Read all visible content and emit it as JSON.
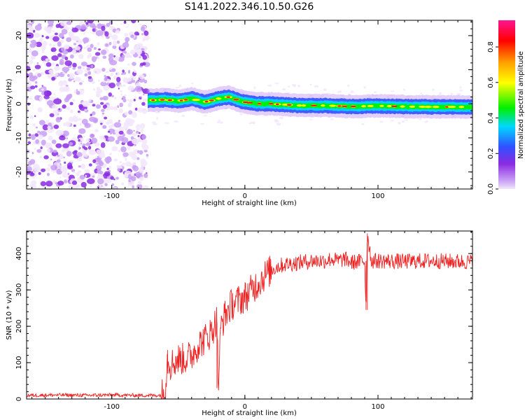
{
  "figure": {
    "title": "S141.2022.346.10.50.G26"
  },
  "chart_data": [
    {
      "type": "heatmap",
      "title": "S141.2022.346.10.50.G26",
      "xlabel": "Height of straight line (km)",
      "ylabel": "Frequency (Hz)",
      "xlim": [
        -164,
        171
      ],
      "ylim": [
        -25,
        24.5
      ],
      "x_ticks": [
        -100,
        0,
        100
      ],
      "y_ticks": [
        -20,
        -10,
        0,
        10,
        20
      ],
      "noise_region_x": [
        -164,
        -73
      ],
      "signal_start_x": -73,
      "signal_track": {
        "x": [
          -73,
          -60,
          -50,
          -40,
          -30,
          -20,
          -12,
          -5,
          0,
          10,
          20,
          40,
          60,
          80,
          100,
          120,
          140,
          160,
          171
        ],
        "frequency_hz": [
          1.0,
          1.2,
          0.8,
          1.5,
          0.5,
          1.5,
          2.0,
          1.0,
          0.5,
          0.0,
          0.0,
          -0.5,
          -0.5,
          -0.8,
          -0.6,
          -0.8,
          -0.9,
          -0.9,
          -1.0
        ]
      },
      "colorbar": {
        "label": "Normalized spectral amplitude",
        "range": [
          0,
          0.95
        ],
        "ticks": [
          0.0,
          0.2,
          0.4,
          0.6,
          0.8
        ],
        "colormap": "rainbow",
        "colors": [
          "#f2e6fc",
          "#c8a0f5",
          "#8a2be2",
          "#3050ff",
          "#00d8ff",
          "#00f000",
          "#ffff00",
          "#ffa000",
          "#ff0000",
          "#ff1493"
        ]
      }
    },
    {
      "type": "line",
      "xlabel": "Height of straight line (km)",
      "ylabel": "SNR (10 * v/v)",
      "xlim": [
        -164,
        171
      ],
      "ylim": [
        0,
        462
      ],
      "x_ticks": [
        -100,
        0,
        100
      ],
      "y_ticks": [
        0,
        100,
        200,
        300,
        400
      ],
      "color": "#ee2222",
      "series": [
        {
          "x": [
            -164,
            -140,
            -120,
            -100,
            -80,
            -64,
            -60,
            -58,
            -56,
            -50,
            -45,
            -40,
            -35,
            -30,
            -25,
            -21,
            -20,
            -18,
            -15,
            -10,
            -5,
            0,
            5,
            10,
            15,
            20,
            25,
            30,
            40,
            50,
            60,
            65,
            70,
            75,
            80,
            90,
            91,
            92,
            95,
            100,
            120,
            140,
            160,
            171
          ],
          "values": [
            10,
            11,
            10,
            11,
            10,
            10,
            20,
            120,
            95,
            110,
            110,
            120,
            150,
            165,
            185,
            220,
            30,
            200,
            230,
            260,
            270,
            280,
            300,
            320,
            340,
            355,
            365,
            370,
            375,
            380,
            380,
            385,
            380,
            385,
            375,
            380,
            245,
            455,
            380,
            380,
            378,
            380,
            378,
            377
          ]
        }
      ]
    }
  ]
}
